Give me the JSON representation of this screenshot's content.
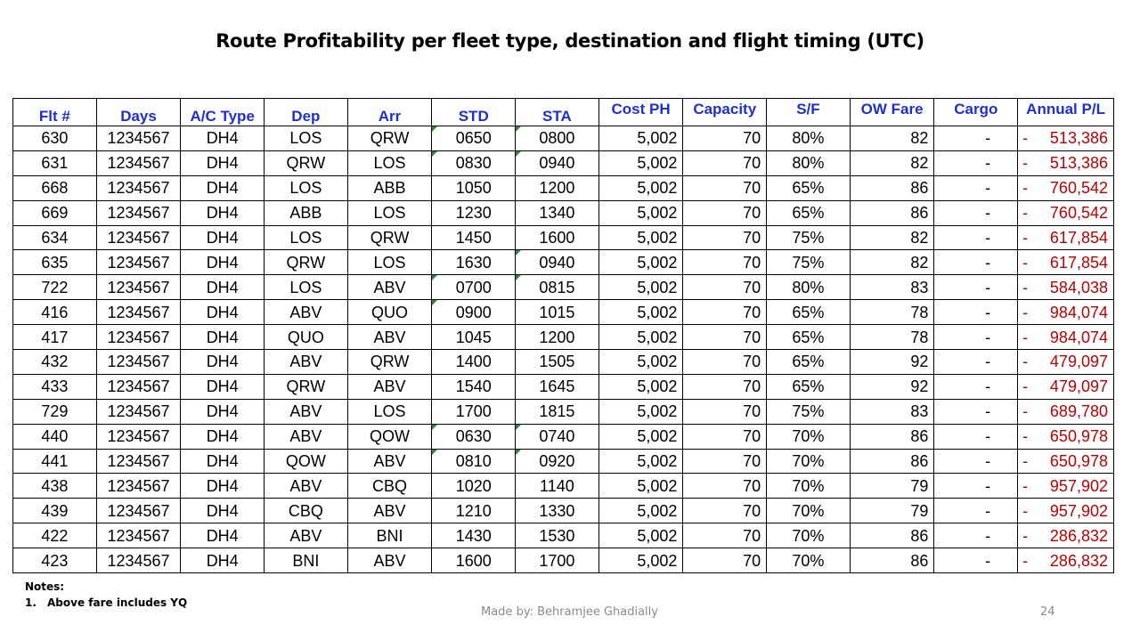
{
  "title": "Route Profitability per fleet type, destination and  flight timing (UTC)",
  "headers": [
    "Flt #",
    "Days",
    "A/C Type",
    "Dep",
    "Arr",
    "STD",
    "STA",
    "Cost PH",
    "Capacity",
    "S/F",
    "OW Fare",
    "Cargo",
    "Annual P/L"
  ],
  "rows": [
    {
      "flt": "630",
      "days": "1234567",
      "ac": "DH4",
      "dep": "LOS",
      "arr": "QRW",
      "std": "0650",
      "sta": "0800",
      "cost": "5,002",
      "cap": "70",
      "sf": "80%",
      "fare": "82",
      "cargo": "-",
      "pl_sign": "-",
      "pl": "513,386",
      "std_flag": true,
      "sta_flag": true
    },
    {
      "flt": "631",
      "days": "1234567",
      "ac": "DH4",
      "dep": "QRW",
      "arr": "LOS",
      "std": "0830",
      "sta": "0940",
      "cost": "5,002",
      "cap": "70",
      "sf": "80%",
      "fare": "82",
      "cargo": "-",
      "pl_sign": "-",
      "pl": "513,386",
      "std_flag": true,
      "sta_flag": true
    },
    {
      "flt": "668",
      "days": "1234567",
      "ac": "DH4",
      "dep": "LOS",
      "arr": "ABB",
      "std": "1050",
      "sta": "1200",
      "cost": "5,002",
      "cap": "70",
      "sf": "65%",
      "fare": "86",
      "cargo": "-",
      "pl_sign": "-",
      "pl": "760,542",
      "std_flag": false,
      "sta_flag": false
    },
    {
      "flt": "669",
      "days": "1234567",
      "ac": "DH4",
      "dep": "ABB",
      "arr": "LOS",
      "std": "1230",
      "sta": "1340",
      "cost": "5,002",
      "cap": "70",
      "sf": "65%",
      "fare": "86",
      "cargo": "-",
      "pl_sign": "-",
      "pl": "760,542",
      "std_flag": false,
      "sta_flag": false
    },
    {
      "flt": "634",
      "days": "1234567",
      "ac": "DH4",
      "dep": "LOS",
      "arr": "QRW",
      "std": "1450",
      "sta": "1600",
      "cost": "5,002",
      "cap": "70",
      "sf": "75%",
      "fare": "82",
      "cargo": "-",
      "pl_sign": "-",
      "pl": "617,854",
      "std_flag": false,
      "sta_flag": false
    },
    {
      "flt": "635",
      "days": "1234567",
      "ac": "DH4",
      "dep": "QRW",
      "arr": "LOS",
      "std": "1630",
      "sta": "0940",
      "cost": "5,002",
      "cap": "70",
      "sf": "75%",
      "fare": "82",
      "cargo": "-",
      "pl_sign": "-",
      "pl": "617,854",
      "std_flag": false,
      "sta_flag": true
    },
    {
      "flt": "722",
      "days": "1234567",
      "ac": "DH4",
      "dep": "LOS",
      "arr": "ABV",
      "std": "0700",
      "sta": "0815",
      "cost": "5,002",
      "cap": "70",
      "sf": "80%",
      "fare": "83",
      "cargo": "-",
      "pl_sign": "-",
      "pl": "584,038",
      "std_flag": true,
      "sta_flag": true
    },
    {
      "flt": "416",
      "days": "1234567",
      "ac": "DH4",
      "dep": "ABV",
      "arr": "QUO",
      "std": "0900",
      "sta": "1015",
      "cost": "5,002",
      "cap": "70",
      "sf": "65%",
      "fare": "78",
      "cargo": "-",
      "pl_sign": "-",
      "pl": "984,074",
      "std_flag": true,
      "sta_flag": false
    },
    {
      "flt": "417",
      "days": "1234567",
      "ac": "DH4",
      "dep": "QUO",
      "arr": "ABV",
      "std": "1045",
      "sta": "1200",
      "cost": "5,002",
      "cap": "70",
      "sf": "65%",
      "fare": "78",
      "cargo": "-",
      "pl_sign": "-",
      "pl": "984,074",
      "std_flag": false,
      "sta_flag": false
    },
    {
      "flt": "432",
      "days": "1234567",
      "ac": "DH4",
      "dep": "ABV",
      "arr": "QRW",
      "std": "1400",
      "sta": "1505",
      "cost": "5,002",
      "cap": "70",
      "sf": "65%",
      "fare": "92",
      "cargo": "-",
      "pl_sign": "-",
      "pl": "479,097",
      "std_flag": false,
      "sta_flag": false
    },
    {
      "flt": "433",
      "days": "1234567",
      "ac": "DH4",
      "dep": "QRW",
      "arr": "ABV",
      "std": "1540",
      "sta": "1645",
      "cost": "5,002",
      "cap": "70",
      "sf": "65%",
      "fare": "92",
      "cargo": "-",
      "pl_sign": "-",
      "pl": "479,097",
      "std_flag": false,
      "sta_flag": false
    },
    {
      "flt": "729",
      "days": "1234567",
      "ac": "DH4",
      "dep": "ABV",
      "arr": "LOS",
      "std": "1700",
      "sta": "1815",
      "cost": "5,002",
      "cap": "70",
      "sf": "75%",
      "fare": "83",
      "cargo": "-",
      "pl_sign": "-",
      "pl": "689,780",
      "std_flag": false,
      "sta_flag": false
    },
    {
      "flt": "440",
      "days": "1234567",
      "ac": "DH4",
      "dep": "ABV",
      "arr": "QOW",
      "std": "0630",
      "sta": "0740",
      "cost": "5,002",
      "cap": "70",
      "sf": "70%",
      "fare": "86",
      "cargo": "-",
      "pl_sign": "-",
      "pl": "650,978",
      "std_flag": true,
      "sta_flag": true
    },
    {
      "flt": "441",
      "days": "1234567",
      "ac": "DH4",
      "dep": "QOW",
      "arr": "ABV",
      "std": "0810",
      "sta": "0920",
      "cost": "5,002",
      "cap": "70",
      "sf": "70%",
      "fare": "86",
      "cargo": "-",
      "pl_sign": "-",
      "pl": "650,978",
      "std_flag": true,
      "sta_flag": true
    },
    {
      "flt": "438",
      "days": "1234567",
      "ac": "DH4",
      "dep": "ABV",
      "arr": "CBQ",
      "std": "1020",
      "sta": "1140",
      "cost": "5,002",
      "cap": "70",
      "sf": "70%",
      "fare": "79",
      "cargo": "-",
      "pl_sign": "-",
      "pl": "957,902",
      "std_flag": false,
      "sta_flag": false
    },
    {
      "flt": "439",
      "days": "1234567",
      "ac": "DH4",
      "dep": "CBQ",
      "arr": "ABV",
      "std": "1210",
      "sta": "1330",
      "cost": "5,002",
      "cap": "70",
      "sf": "70%",
      "fare": "79",
      "cargo": "-",
      "pl_sign": "-",
      "pl": "957,902",
      "std_flag": false,
      "sta_flag": false
    },
    {
      "flt": "422",
      "days": "1234567",
      "ac": "DH4",
      "dep": "ABV",
      "arr": "BNI",
      "std": "1430",
      "sta": "1530",
      "cost": "5,002",
      "cap": "70",
      "sf": "70%",
      "fare": "86",
      "cargo": "-",
      "pl_sign": "-",
      "pl": "286,832",
      "std_flag": false,
      "sta_flag": false
    },
    {
      "flt": "423",
      "days": "1234567",
      "ac": "DH4",
      "dep": "BNI",
      "arr": "ABV",
      "std": "1600",
      "sta": "1700",
      "cost": "5,002",
      "cap": "70",
      "sf": "70%",
      "fare": "86",
      "cargo": "-",
      "pl_sign": "-",
      "pl": "286,832",
      "std_flag": false,
      "sta_flag": false
    }
  ],
  "notes": {
    "heading": "Notes:",
    "items": [
      {
        "num": "1.",
        "text": "Above fare includes YQ"
      }
    ]
  },
  "footer": "Made by:  Behramjee Ghadially",
  "page_number": "24",
  "colors": {
    "header_text": "#1f2fd6",
    "pl_text": "#c00000",
    "comment_marker": "#2e8b2e",
    "footer": "#8c8c8c"
  }
}
